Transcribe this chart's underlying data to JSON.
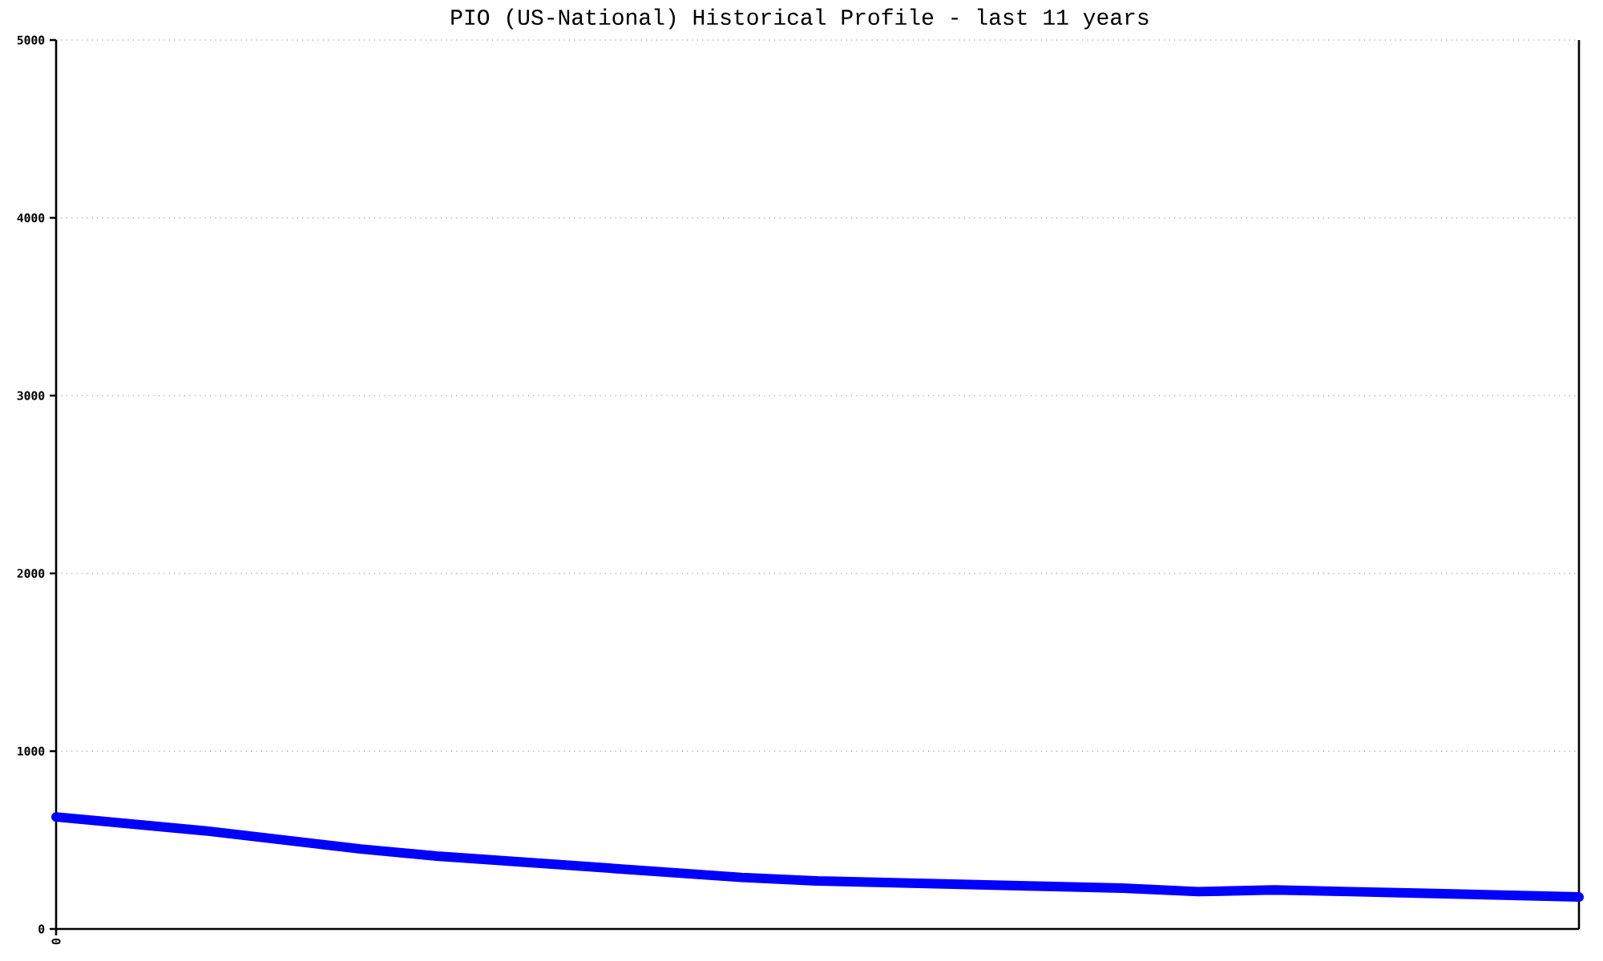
{
  "chart_data": {
    "type": "line",
    "title": "PIO (US-National) Historical Profile - last 11 years",
    "categories": [
      "0",
      null,
      null,
      null,
      null,
      null,
      null,
      null,
      null,
      null,
      null,
      null,
      null,
      null,
      null,
      null,
      null,
      null,
      null,
      null,
      null
    ],
    "series": [
      {
        "color": "#0000ff",
        "values": [
          630,
          590,
          550,
          500,
          450,
          410,
          380,
          350,
          320,
          290,
          270,
          260,
          250,
          240,
          230,
          210,
          220,
          210,
          200,
          190,
          180
        ]
      }
    ],
    "ylim": [
      0,
      5000
    ],
    "yticks": [
      0,
      1000,
      2000,
      3000,
      4000,
      5000
    ],
    "grid": "y",
    "line_style": "solid"
  }
}
